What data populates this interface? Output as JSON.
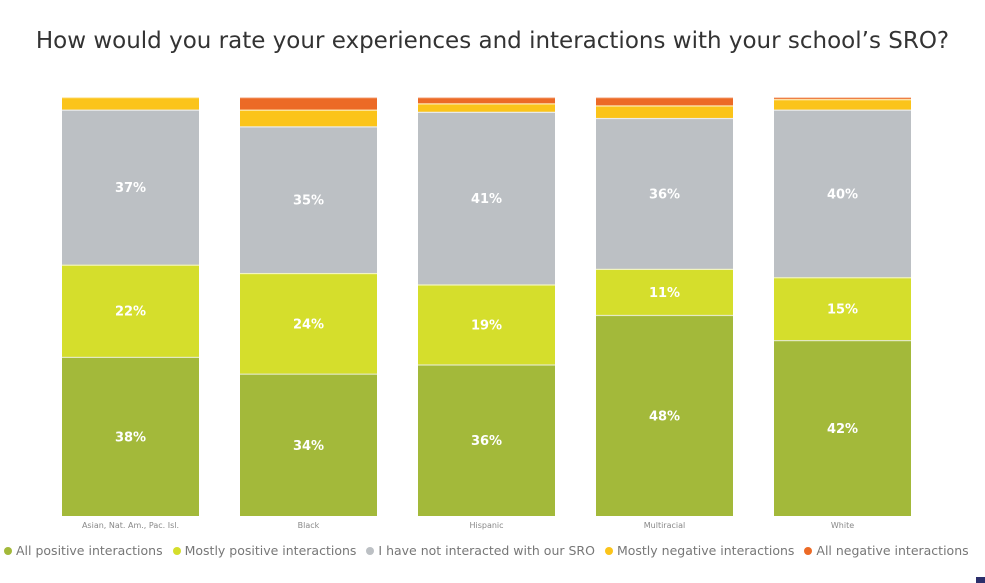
{
  "chart_data": {
    "type": "bar",
    "stacked": true,
    "title": "How would you rate your experiences and interactions with your school’s SRO?",
    "categories": [
      "Asian, Nat. Am., Pac. Isl.",
      "Black",
      "Hispanic",
      "Multiracial",
      "White"
    ],
    "series": [
      {
        "name": "All positive interactions",
        "color": "#a3b93a",
        "values": [
          38,
          34,
          36,
          48,
          42
        ]
      },
      {
        "name": "Mostly positive interactions",
        "color": "#d5de2c",
        "values": [
          22,
          24,
          19,
          11,
          15
        ]
      },
      {
        "name": "I have not interacted with our SRO",
        "color": "#bcc0c4",
        "values": [
          37,
          35,
          41,
          36,
          40
        ]
      },
      {
        "name": "Mostly negative interactions",
        "color": "#fbc41a",
        "values": [
          3,
          4,
          2,
          3,
          2.5
        ]
      },
      {
        "name": "All negative interactions",
        "color": "#ec6a26",
        "values": [
          0,
          3,
          1.5,
          2,
          0.5
        ]
      }
    ],
    "data_labels": [
      [
        "38%",
        "34%",
        "36%",
        "48%",
        "42%"
      ],
      [
        "22%",
        "24%",
        "19%",
        "11%",
        "15%"
      ],
      [
        "37%",
        "35%",
        "41%",
        "36%",
        "40%"
      ]
    ],
    "ylim": [
      0,
      100
    ],
    "legend_position": "bottom",
    "grid": false
  },
  "decor": {
    "corner_color": "#2b2e6b"
  }
}
